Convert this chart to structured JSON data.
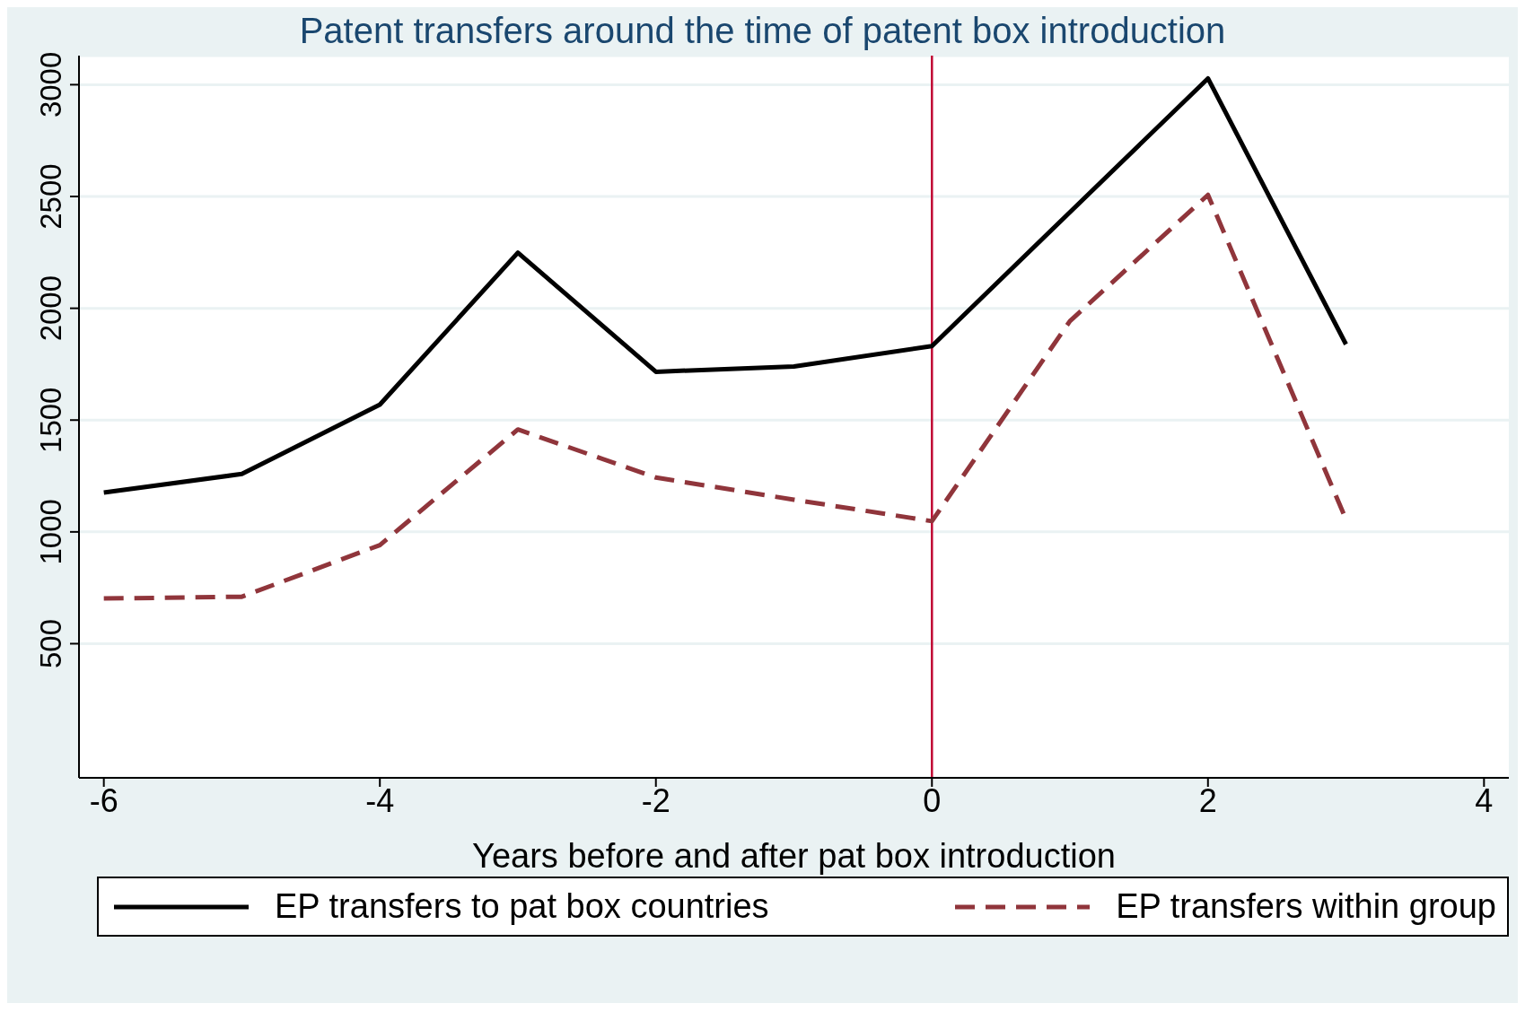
{
  "chart_data": {
    "type": "line",
    "title": "Patent transfers around the time of patent box introduction",
    "xlabel": "Years before and after pat box introduction",
    "x": [
      -6,
      -5,
      -4,
      -3,
      -2,
      -1,
      0,
      1,
      2,
      3
    ],
    "series": [
      {
        "name": "EP transfers to pat box countries",
        "color": "#000000",
        "line_style": "solid",
        "values": [
          1176,
          1259,
          1569,
          2249,
          1716,
          1740,
          1831,
          2430,
          3028,
          1839
        ]
      },
      {
        "name": "EP transfers within group",
        "color": "#90353b",
        "line_style": "dashed",
        "values": [
          702,
          710,
          941,
          1458,
          1243,
          1144,
          1048,
          1943,
          2507,
          1056
        ]
      }
    ],
    "xlim": [
      -6.18,
      4.18
    ],
    "xticks": [
      -6,
      -4,
      -2,
      0,
      2,
      4
    ],
    "ylim": [
      -100,
      3130
    ],
    "yticks": [
      500,
      1000,
      1500,
      2000,
      2500,
      3000
    ],
    "grid": "y",
    "legend": "bottom",
    "marker": "none",
    "ref_lines": [
      {
        "axis": "x",
        "value": 0,
        "color": "#c10534"
      }
    ]
  }
}
